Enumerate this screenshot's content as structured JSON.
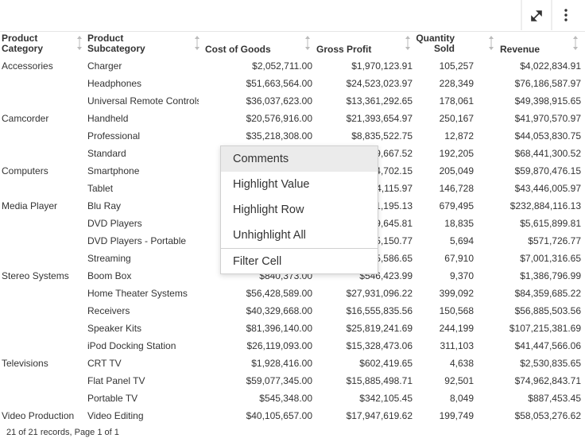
{
  "table": {
    "columns": [
      "Product Category",
      "Product Subcategory",
      "Cost of Goods",
      "Gross Profit",
      "Quantity Sold",
      "Revenue"
    ],
    "rows": [
      [
        "Accessories",
        "Charger",
        "$2,052,711.00",
        "$1,970,123.91",
        "105,257",
        "$4,022,834.91"
      ],
      [
        null,
        "Headphones",
        "$51,663,564.00",
        "$24,523,023.97",
        "228,349",
        "$76,186,587.97"
      ],
      [
        null,
        "Universal Remote Controls",
        "$36,037,623.00",
        "$13,361,292.65",
        "178,061",
        "$49,398,915.65"
      ],
      [
        "Camcorder",
        "Handheld",
        "$20,576,916.00",
        "$21,393,654.97",
        "250,167",
        "$41,970,570.97"
      ],
      [
        null,
        "Professional",
        "$35,218,308.00",
        "$8,835,522.75",
        "12,872",
        "$44,053,830.75"
      ],
      [
        null,
        "Standard",
        null,
        "9,667.52",
        "192,205",
        "$68,441,300.52"
      ],
      [
        "Computers",
        "Smartphone",
        null,
        "4,702.15",
        "205,049",
        "$59,870,476.15"
      ],
      [
        null,
        "Tablet",
        null,
        "4,115.97",
        "146,728",
        "$43,446,005.97"
      ],
      [
        "Media Player",
        "Blu Ray",
        null,
        "1,195.13",
        "679,495",
        "$232,884,116.13"
      ],
      [
        null,
        "DVD Players",
        null,
        "9,645.81",
        "18,835",
        "$5,615,899.81"
      ],
      [
        null,
        "DVD Players - Portable",
        null,
        "5,150.77",
        "5,694",
        "$571,726.77"
      ],
      [
        null,
        "Streaming",
        null,
        "5,586.65",
        "67,910",
        "$7,001,316.65"
      ],
      [
        "Stereo Systems",
        "Boom Box",
        "$840,373.00",
        "$546,423.99",
        "9,370",
        "$1,386,796.99"
      ],
      [
        null,
        "Home Theater Systems",
        "$56,428,589.00",
        "$27,931,096.22",
        "399,092",
        "$84,359,685.22"
      ],
      [
        null,
        "Receivers",
        "$40,329,668.00",
        "$16,555,835.56",
        "150,568",
        "$56,885,503.56"
      ],
      [
        null,
        "Speaker Kits",
        "$81,396,140.00",
        "$25,819,241.69",
        "244,199",
        "$107,215,381.69"
      ],
      [
        null,
        "iPod Docking Station",
        "$26,119,093.00",
        "$15,328,473.06",
        "311,103",
        "$41,447,566.06"
      ],
      [
        "Televisions",
        "CRT TV",
        "$1,928,416.00",
        "$602,419.65",
        "4,638",
        "$2,530,835.65"
      ],
      [
        null,
        "Flat Panel TV",
        "$59,077,345.00",
        "$15,885,498.71",
        "92,501",
        "$74,962,843.71"
      ],
      [
        null,
        "Portable TV",
        "$545,348.00",
        "$342,105.45",
        "8,049",
        "$887,453.45"
      ],
      [
        "Video Production",
        "Video Editing",
        "$40,105,657.00",
        "$17,947,619.62",
        "199,749",
        "$58,053,276.62"
      ]
    ],
    "footer": "21 of 21 records, Page 1 of 1"
  },
  "context_menu": {
    "items": [
      "Comments",
      "Highlight Value",
      "Highlight Row",
      "Unhighlight All",
      "Filter Cell"
    ]
  }
}
